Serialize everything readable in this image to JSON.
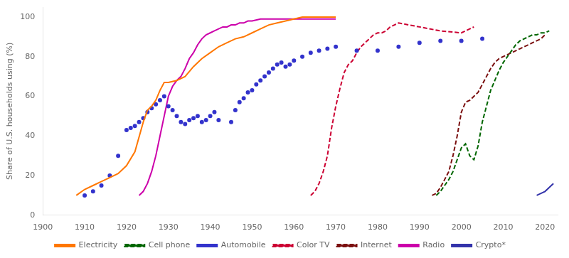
{
  "chart_data": {
    "type": "line",
    "y_label": "Share of U.S. households using (%)",
    "xlim": [
      1900,
      2023
    ],
    "ylim": [
      0,
      105
    ],
    "xticks": [
      1900,
      1910,
      1920,
      1930,
      1940,
      1950,
      1960,
      1970,
      1980,
      1990,
      2000,
      2010,
      2020
    ],
    "yticks": [
      0,
      20,
      40,
      60,
      80,
      100
    ],
    "grid": false,
    "legend": "bottom",
    "series": [
      {
        "name": "Electricity",
        "color": "#FF7700",
        "line_style": "solid",
        "x": [
          1908,
          1910,
          1912,
          1914,
          1916,
          1918,
          1920,
          1922,
          1924,
          1925,
          1926,
          1927,
          1928,
          1929,
          1930,
          1932,
          1934,
          1936,
          1938,
          1940,
          1942,
          1944,
          1946,
          1948,
          1950,
          1952,
          1954,
          1956,
          1958,
          1960,
          1962,
          1964,
          1966,
          1968,
          1970
        ],
        "values": [
          10,
          13,
          15,
          17,
          19,
          21,
          25,
          32,
          47,
          53,
          55,
          58,
          63,
          67,
          67,
          68,
          70,
          75,
          79,
          82,
          85,
          87,
          89,
          90,
          92,
          94,
          96,
          97,
          98,
          99,
          100,
          100,
          100,
          100,
          100
        ]
      },
      {
        "name": "Cell phone",
        "color": "#006600",
        "line_style": "dashed",
        "x": [
          1994,
          1995,
          1996,
          1997,
          1998,
          1999,
          2000,
          2001,
          2002,
          2003,
          2004,
          2005,
          2006,
          2007,
          2008,
          2009,
          2010,
          2011,
          2012,
          2013,
          2014,
          2015,
          2016,
          2017,
          2018,
          2019,
          2020,
          2021
        ],
        "values": [
          10,
          12,
          15,
          18,
          22,
          28,
          34,
          36,
          30,
          28,
          35,
          47,
          55,
          63,
          68,
          73,
          77,
          80,
          83,
          86,
          88,
          89,
          90,
          91,
          91,
          92,
          92,
          93
        ]
      },
      {
        "name": "Automobile",
        "color": "#3333CC",
        "line_style": "none",
        "marker": "dot",
        "x": [
          1910,
          1912,
          1914,
          1916,
          1918,
          1920,
          1921,
          1922,
          1923,
          1924,
          1925,
          1926,
          1927,
          1928,
          1929,
          1930,
          1931,
          1932,
          1933,
          1934,
          1935,
          1936,
          1937,
          1938,
          1939,
          1940,
          1941,
          1942,
          1945,
          1946,
          1947,
          1948,
          1949,
          1950,
          1951,
          1952,
          1953,
          1954,
          1955,
          1956,
          1957,
          1958,
          1959,
          1960,
          1962,
          1964,
          1966,
          1968,
          1970,
          1975,
          1980,
          1985,
          1990,
          1995,
          2000,
          2005
        ],
        "values": [
          10,
          12,
          15,
          20,
          30,
          43,
          44,
          45,
          47,
          49,
          52,
          54,
          56,
          58,
          60,
          55,
          53,
          50,
          47,
          46,
          48,
          49,
          50,
          47,
          48,
          50,
          52,
          48,
          47,
          53,
          57,
          59,
          62,
          63,
          66,
          68,
          70,
          72,
          74,
          76,
          77,
          75,
          76,
          78,
          80,
          82,
          83,
          84,
          85,
          83,
          83,
          85,
          87,
          88,
          88,
          89
        ]
      },
      {
        "name": "Color TV",
        "color": "#CC0033",
        "line_style": "dashed",
        "x": [
          1964,
          1965,
          1966,
          1967,
          1968,
          1969,
          1970,
          1971,
          1972,
          1973,
          1974,
          1975,
          1976,
          1977,
          1978,
          1979,
          1980,
          1981,
          1982,
          1983,
          1984,
          1985,
          1990,
          1995,
          2000,
          2001,
          2002,
          2003
        ],
        "values": [
          10,
          12,
          16,
          22,
          30,
          44,
          55,
          64,
          72,
          76,
          78,
          82,
          85,
          87,
          89,
          91,
          92,
          92,
          93,
          95,
          96,
          97,
          95,
          93,
          92,
          93,
          94,
          95
        ]
      },
      {
        "name": "Internet",
        "color": "#7B1010",
        "line_style": "dashed",
        "x": [
          1993,
          1994,
          1995,
          1996,
          1997,
          1998,
          1999,
          2000,
          2001,
          2002,
          2003,
          2004,
          2005,
          2006,
          2007,
          2008,
          2009,
          2010,
          2011,
          2012,
          2013,
          2014,
          2015,
          2016,
          2017,
          2018,
          2019,
          2020
        ],
        "values": [
          10,
          11,
          14,
          18,
          22,
          30,
          40,
          52,
          57,
          58,
          60,
          62,
          66,
          70,
          74,
          77,
          79,
          80,
          81,
          82,
          83,
          84,
          85,
          86,
          87,
          88,
          89,
          91
        ]
      },
      {
        "name": "Radio",
        "color": "#CC00AA",
        "line_style": "solid",
        "x": [
          1923,
          1924,
          1925,
          1926,
          1927,
          1928,
          1929,
          1930,
          1931,
          1932,
          1933,
          1934,
          1935,
          1936,
          1937,
          1938,
          1939,
          1940,
          1941,
          1942,
          1943,
          1944,
          1945,
          1946,
          1947,
          1948,
          1949,
          1950,
          1952,
          1955,
          1960,
          1965,
          1970
        ],
        "values": [
          10,
          12,
          16,
          22,
          30,
          40,
          50,
          60,
          65,
          68,
          70,
          74,
          79,
          82,
          86,
          89,
          91,
          92,
          93,
          94,
          95,
          95,
          96,
          96,
          97,
          97,
          98,
          98,
          99,
          99,
          99,
          99,
          99
        ]
      },
      {
        "name": "Crypto*",
        "color": "#3333AA",
        "line_style": "solid",
        "x": [
          2018,
          2019,
          2020,
          2021,
          2022
        ],
        "values": [
          10,
          11,
          12,
          14,
          16
        ]
      }
    ]
  }
}
